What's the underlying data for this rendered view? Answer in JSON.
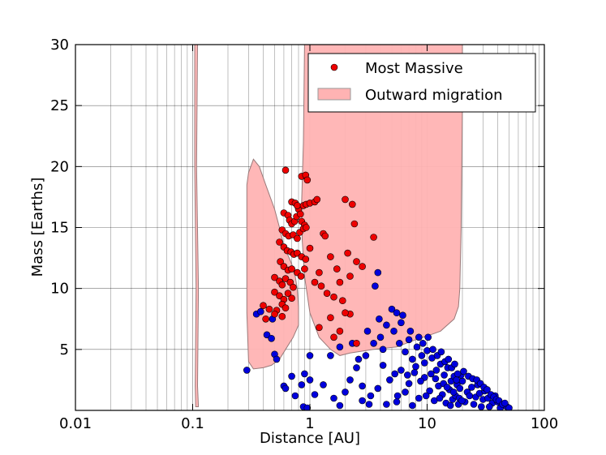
{
  "chart_data": {
    "type": "scatter",
    "xlabel": "Distance [AU]",
    "ylabel": "Mass [Earths]",
    "xscale": "log",
    "xlim": [
      0.01,
      100
    ],
    "ylim": [
      0,
      30
    ],
    "x_ticks": [
      0.01,
      0.1,
      1,
      10,
      100
    ],
    "x_tick_labels": [
      "0.01",
      "0.1",
      "1",
      "10",
      "100"
    ],
    "y_ticks": [
      5,
      10,
      15,
      20,
      25,
      30
    ],
    "y_tick_labels": [
      "5",
      "10",
      "15",
      "20",
      "25",
      "30"
    ],
    "grid": true,
    "legend_position": "top-right",
    "legend": [
      {
        "label": "Most Massive",
        "kind": "marker",
        "color": "#ee0000"
      },
      {
        "label": "Outward migration",
        "kind": "patch",
        "color": "#ffb3b3"
      }
    ],
    "regions": [
      {
        "name": "Outward migration",
        "color": "#ffb3b3",
        "polygons": [
          [
            [
              0.104,
              30
            ],
            [
              0.11,
              30
            ],
            [
              0.108,
              20
            ],
            [
              0.112,
              10
            ],
            [
              0.11,
              2
            ],
            [
              0.112,
              0.3
            ],
            [
              0.106,
              0.3
            ],
            [
              0.105,
              2
            ],
            [
              0.107,
              10
            ],
            [
              0.104,
              20
            ]
          ],
          [
            [
              0.29,
              18.5
            ],
            [
              0.3,
              19.5
            ],
            [
              0.33,
              20.6
            ],
            [
              0.37,
              20.0
            ],
            [
              0.42,
              18.5
            ],
            [
              0.5,
              16.5
            ],
            [
              0.55,
              15.0
            ],
            [
              0.6,
              13.5
            ],
            [
              0.7,
              12.0
            ],
            [
              0.75,
              11.0
            ],
            [
              0.78,
              10.0
            ],
            [
              0.8,
              8.5
            ],
            [
              0.8,
              7.0
            ],
            [
              0.72,
              6.0
            ],
            [
              0.62,
              5.0
            ],
            [
              0.55,
              4.2
            ],
            [
              0.47,
              3.7
            ],
            [
              0.4,
              3.5
            ],
            [
              0.33,
              3.4
            ],
            [
              0.3,
              4.0
            ],
            [
              0.29,
              8.0
            ]
          ],
          [
            [
              0.88,
              22.0
            ],
            [
              0.9,
              30.0
            ],
            [
              20.0,
              30.0
            ],
            [
              20.0,
              25.0
            ],
            [
              19.5,
              15.0
            ],
            [
              19.0,
              10.0
            ],
            [
              18.5,
              8.5
            ],
            [
              17.0,
              7.5
            ],
            [
              13.0,
              6.5
            ],
            [
              10.0,
              6.1
            ],
            [
              8.0,
              5.8
            ],
            [
              5.5,
              5.2
            ],
            [
              3.5,
              5.0
            ],
            [
              2.2,
              4.7
            ],
            [
              1.8,
              4.5
            ],
            [
              1.5,
              5.0
            ],
            [
              1.2,
              6.0
            ],
            [
              1.0,
              8.0
            ],
            [
              0.9,
              11.0
            ],
            [
              0.86,
              14.0
            ],
            [
              0.85,
              17.0
            ]
          ]
        ]
      }
    ],
    "series": [
      {
        "name": "Most Massive",
        "color": "#ee0000",
        "points": [
          [
            0.62,
            19.7
          ],
          [
            0.8,
            16.5
          ],
          [
            0.85,
            19.2
          ],
          [
            0.92,
            19.3
          ],
          [
            0.95,
            18.9
          ],
          [
            0.7,
            17.1
          ],
          [
            0.75,
            17.0
          ],
          [
            0.78,
            16.8
          ],
          [
            0.88,
            16.8
          ],
          [
            0.93,
            16.9
          ],
          [
            1.0,
            17.0
          ],
          [
            1.1,
            17.1
          ],
          [
            1.15,
            17.3
          ],
          [
            2.0,
            17.3
          ],
          [
            2.3,
            16.9
          ],
          [
            0.6,
            16.2
          ],
          [
            0.65,
            16.0
          ],
          [
            0.67,
            15.6
          ],
          [
            0.7,
            15.3
          ],
          [
            0.74,
            15.5
          ],
          [
            0.77,
            15.9
          ],
          [
            0.83,
            16.1
          ],
          [
            0.85,
            15.5
          ],
          [
            0.9,
            15.2
          ],
          [
            0.58,
            14.8
          ],
          [
            0.62,
            14.5
          ],
          [
            0.66,
            14.3
          ],
          [
            0.72,
            14.4
          ],
          [
            0.78,
            14.1
          ],
          [
            0.82,
            14.6
          ],
          [
            0.88,
            14.9
          ],
          [
            0.93,
            15.0
          ],
          [
            1.3,
            14.5
          ],
          [
            1.35,
            14.3
          ],
          [
            2.4,
            15.3
          ],
          [
            0.55,
            13.8
          ],
          [
            0.6,
            13.4
          ],
          [
            0.64,
            13.1
          ],
          [
            0.69,
            13.0
          ],
          [
            0.73,
            12.8
          ],
          [
            0.78,
            12.9
          ],
          [
            0.85,
            12.6
          ],
          [
            0.92,
            12.4
          ],
          [
            1.0,
            13.3
          ],
          [
            3.5,
            14.2
          ],
          [
            0.56,
            12.2
          ],
          [
            0.6,
            11.8
          ],
          [
            0.65,
            11.5
          ],
          [
            0.7,
            11.6
          ],
          [
            0.78,
            11.3
          ],
          [
            0.84,
            11.0
          ],
          [
            0.9,
            11.6
          ],
          [
            1.5,
            12.6
          ],
          [
            2.1,
            12.9
          ],
          [
            2.5,
            12.2
          ],
          [
            0.5,
            10.9
          ],
          [
            0.55,
            10.6
          ],
          [
            0.58,
            10.3
          ],
          [
            0.62,
            10.8
          ],
          [
            0.68,
            10.5
          ],
          [
            0.72,
            10.1
          ],
          [
            1.2,
            11.3
          ],
          [
            1.7,
            11.6
          ],
          [
            2.2,
            11.0
          ],
          [
            2.8,
            11.8
          ],
          [
            0.5,
            9.7
          ],
          [
            0.55,
            9.4
          ],
          [
            0.6,
            9.1
          ],
          [
            0.65,
            9.6
          ],
          [
            0.7,
            9.2
          ],
          [
            1.1,
            10.5
          ],
          [
            1.25,
            10.2
          ],
          [
            1.8,
            10.5
          ],
          [
            0.4,
            8.6
          ],
          [
            0.45,
            8.3
          ],
          [
            0.52,
            8.2
          ],
          [
            0.58,
            8.7
          ],
          [
            0.62,
            8.4
          ],
          [
            1.4,
            9.6
          ],
          [
            1.6,
            9.3
          ],
          [
            1.9,
            9.0
          ],
          [
            0.5,
            7.9
          ],
          [
            0.58,
            7.7
          ],
          [
            1.5,
            7.6
          ],
          [
            2.2,
            7.9
          ],
          [
            1.2,
            6.8
          ],
          [
            1.8,
            6.5
          ],
          [
            1.6,
            6.0
          ],
          [
            2.5,
            5.5
          ],
          [
            0.42,
            7.5
          ],
          [
            2.0,
            8.0
          ]
        ]
      },
      {
        "name": "",
        "color": "#0000dd",
        "points": [
          [
            0.29,
            3.3
          ],
          [
            0.35,
            7.9
          ],
          [
            0.38,
            8.1
          ],
          [
            0.43,
            6.2
          ],
          [
            0.47,
            5.9
          ],
          [
            0.5,
            4.6
          ],
          [
            0.52,
            4.2
          ],
          [
            0.48,
            7.5
          ],
          [
            0.6,
            2.0
          ],
          [
            0.62,
            1.8
          ],
          [
            0.75,
            1.2
          ],
          [
            0.88,
            0.3
          ],
          [
            0.95,
            0.2
          ],
          [
            0.9,
            3.0
          ],
          [
            1.0,
            2.5
          ],
          [
            1.1,
            1.3
          ],
          [
            1.3,
            2.1
          ],
          [
            1.6,
            1.0
          ],
          [
            1.8,
            0.4
          ],
          [
            2.5,
            3.5
          ],
          [
            2.8,
            2.0
          ],
          [
            3.3,
            1.2
          ],
          [
            3.6,
            10.2
          ],
          [
            3.8,
            11.3
          ],
          [
            4.5,
            7.0
          ],
          [
            5.0,
            8.3
          ],
          [
            5.5,
            8.0
          ],
          [
            6.0,
            7.2
          ],
          [
            7.0,
            5.8
          ],
          [
            8.5,
            6.0
          ],
          [
            9.0,
            4.5
          ],
          [
            9.5,
            3.9
          ],
          [
            10.0,
            4.9
          ],
          [
            11.0,
            4.3
          ],
          [
            12.0,
            3.3
          ],
          [
            13.0,
            3.8
          ],
          [
            14.0,
            2.9
          ],
          [
            15.0,
            3.5
          ],
          [
            16.0,
            2.4
          ],
          [
            17.0,
            2.8
          ],
          [
            18.0,
            2.1
          ],
          [
            19.0,
            1.8
          ],
          [
            20.0,
            2.4
          ],
          [
            22.0,
            1.5
          ],
          [
            24.0,
            1.9
          ],
          [
            26.0,
            1.1
          ],
          [
            28.0,
            1.4
          ],
          [
            30.0,
            0.9
          ],
          [
            33.0,
            1.0
          ],
          [
            36.0,
            0.6
          ],
          [
            40.0,
            0.7
          ],
          [
            45.0,
            0.4
          ],
          [
            48.0,
            0.3
          ],
          [
            3.0,
            4.5
          ],
          [
            3.5,
            5.5
          ],
          [
            4.0,
            6.0
          ],
          [
            4.2,
            5.0
          ],
          [
            5.2,
            6.5
          ],
          [
            5.8,
            5.5
          ],
          [
            6.5,
            4.8
          ],
          [
            7.5,
            4.2
          ],
          [
            8.0,
            3.6
          ],
          [
            2.2,
            2.5
          ],
          [
            2.0,
            1.5
          ],
          [
            2.8,
            0.8
          ],
          [
            3.2,
            0.5
          ],
          [
            4.5,
            0.5
          ],
          [
            5.5,
            0.7
          ],
          [
            6.5,
            1.5
          ],
          [
            7.0,
            2.2
          ],
          [
            7.5,
            0.4
          ],
          [
            8.5,
            1.0
          ],
          [
            9.5,
            2.7
          ],
          [
            10.5,
            1.6
          ],
          [
            11.5,
            0.8
          ],
          [
            12.5,
            2.0
          ],
          [
            13.5,
            1.3
          ],
          [
            14.5,
            0.6
          ],
          [
            15.5,
            1.7
          ],
          [
            16.5,
            0.9
          ],
          [
            17.5,
            1.2
          ],
          [
            18.5,
            0.5
          ],
          [
            19.5,
            2.9
          ],
          [
            21.0,
            0.7
          ],
          [
            23.0,
            1.2
          ],
          [
            25.0,
            0.5
          ],
          [
            27.0,
            2.1
          ],
          [
            29.0,
            0.3
          ],
          [
            31.0,
            1.6
          ],
          [
            34.0,
            0.3
          ],
          [
            38.0,
            1.2
          ],
          [
            42.0,
            0.2
          ],
          [
            6.0,
            3.3
          ],
          [
            6.8,
            2.9
          ],
          [
            7.8,
            3.1
          ],
          [
            8.8,
            2.4
          ],
          [
            9.8,
            1.2
          ],
          [
            10.8,
            3.0
          ],
          [
            11.8,
            2.6
          ],
          [
            12.8,
            1.0
          ],
          [
            13.8,
            2.2
          ],
          [
            14.8,
            1.9
          ],
          [
            15.8,
            0.4
          ],
          [
            16.8,
            1.5
          ],
          [
            17.8,
            2.5
          ],
          [
            18.8,
            1.0
          ],
          [
            19.8,
            0.8
          ],
          [
            4.8,
            2.5
          ],
          [
            5.3,
            3.0
          ],
          [
            5.6,
            1.2
          ],
          [
            3.8,
            1.8
          ],
          [
            4.2,
            3.7
          ],
          [
            2.6,
            4.2
          ],
          [
            1.8,
            5.2
          ],
          [
            1.5,
            4.5
          ],
          [
            1.0,
            4.5
          ],
          [
            0.85,
            2.1
          ],
          [
            0.7,
            2.8
          ],
          [
            2.3,
            5.5
          ],
          [
            3.1,
            6.5
          ],
          [
            3.9,
            7.5
          ],
          [
            6.2,
            7.8
          ],
          [
            7.2,
            6.5
          ],
          [
            8.2,
            5.2
          ],
          [
            9.2,
            5.5
          ],
          [
            10.2,
            6.0
          ],
          [
            11.2,
            5.0
          ],
          [
            12.2,
            4.5
          ],
          [
            13.2,
            4.8
          ],
          [
            14.2,
            4.0
          ],
          [
            15.2,
            4.2
          ],
          [
            16.2,
            3.5
          ],
          [
            17.2,
            3.8
          ],
          [
            18.2,
            3.0
          ],
          [
            20.5,
            3.2
          ],
          [
            22.5,
            2.8
          ],
          [
            24.5,
            2.6
          ],
          [
            26.5,
            2.5
          ],
          [
            28.5,
            2.2
          ],
          [
            30.5,
            1.9
          ],
          [
            32.5,
            1.7
          ],
          [
            35.0,
            1.3
          ],
          [
            37.0,
            1.1
          ],
          [
            39.0,
            0.9
          ],
          [
            41.0,
            0.8
          ],
          [
            44.0,
            0.5
          ],
          [
            46.0,
            0.6
          ],
          [
            50.0,
            0.2
          ]
        ]
      }
    ]
  }
}
